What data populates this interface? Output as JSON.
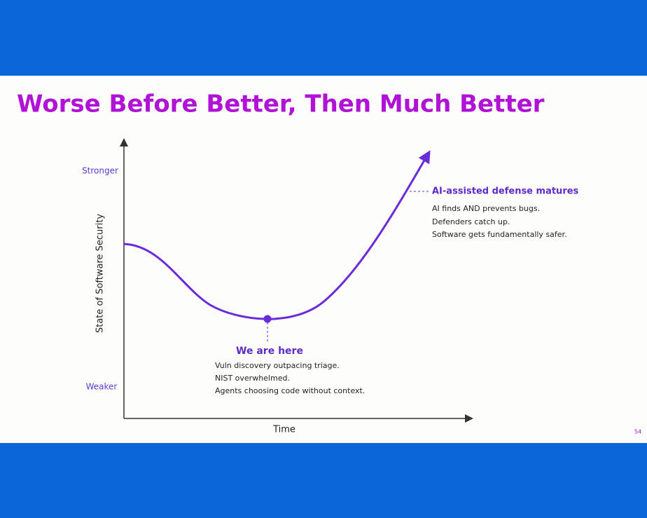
{
  "title": "Worse Before Better, Then Much Better",
  "axes": {
    "y_label": "State of Software Security",
    "y_top": "Stronger",
    "y_bottom": "Weaker",
    "x_label": "Time"
  },
  "annotations": [
    {
      "heading": "We are here",
      "lines": [
        "Vuln discovery outpacing triage.",
        "NIST overwhelmed.",
        "Agents choosing code without context."
      ]
    },
    {
      "heading": "AI-assisted defense matures",
      "lines": [
        "AI finds AND prevents bugs.",
        "Defenders catch up.",
        "Software gets fundamentally safer."
      ]
    }
  ],
  "page_number": "54"
}
